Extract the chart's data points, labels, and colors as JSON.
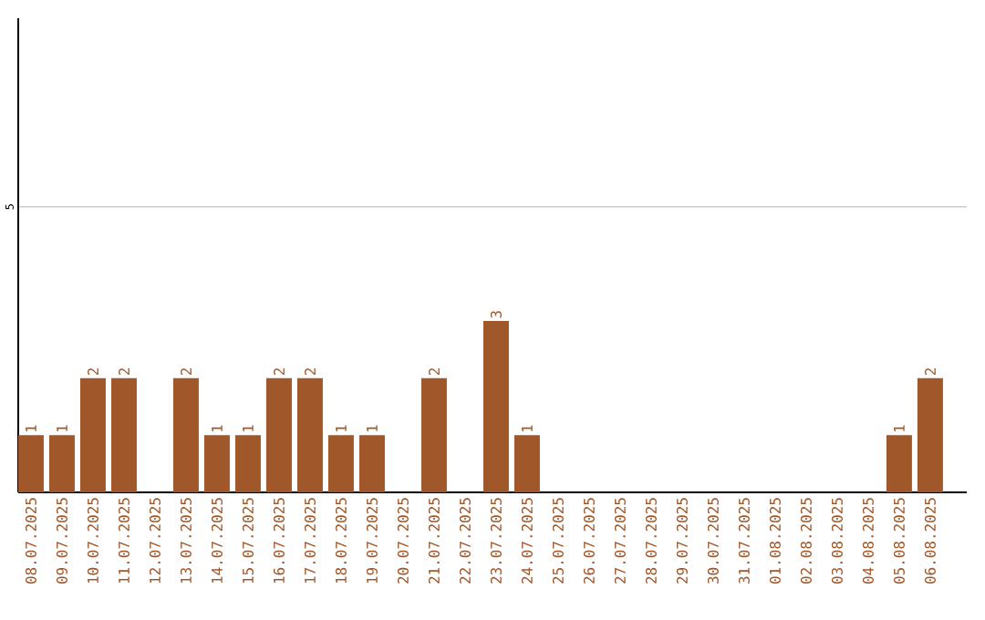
{
  "chart_data": {
    "type": "bar",
    "categories": [
      "08.07.2025",
      "09.07.2025",
      "10.07.2025",
      "11.07.2025",
      "12.07.2025",
      "13.07.2025",
      "14.07.2025",
      "15.07.2025",
      "16.07.2025",
      "17.07.2025",
      "18.07.2025",
      "19.07.2025",
      "20.07.2025",
      "21.07.2025",
      "22.07.2025",
      "23.07.2025",
      "24.07.2025",
      "25.07.2025",
      "26.07.2025",
      "27.07.2025",
      "28.07.2025",
      "29.07.2025",
      "30.07.2025",
      "31.07.2025",
      "01.08.2025",
      "02.08.2025",
      "03.08.2025",
      "04.08.2025",
      "05.08.2025",
      "06.08.2025"
    ],
    "values": [
      1,
      1,
      2,
      2,
      0,
      2,
      1,
      1,
      2,
      2,
      1,
      1,
      0,
      2,
      0,
      3,
      1,
      0,
      0,
      0,
      0,
      0,
      0,
      0,
      0,
      0,
      0,
      0,
      1,
      2
    ],
    "value_labels": [
      "1",
      "1",
      "2",
      "2",
      null,
      "2",
      "1",
      "1",
      "2",
      "2",
      "1",
      "1",
      null,
      "2",
      null,
      "3",
      "1",
      null,
      null,
      null,
      null,
      null,
      null,
      null,
      null,
      null,
      null,
      null,
      "1",
      "2"
    ],
    "color": "#a0572a",
    "ylim": [
      0,
      8.3
    ],
    "yticks": [
      5
    ],
    "grid": "y"
  }
}
